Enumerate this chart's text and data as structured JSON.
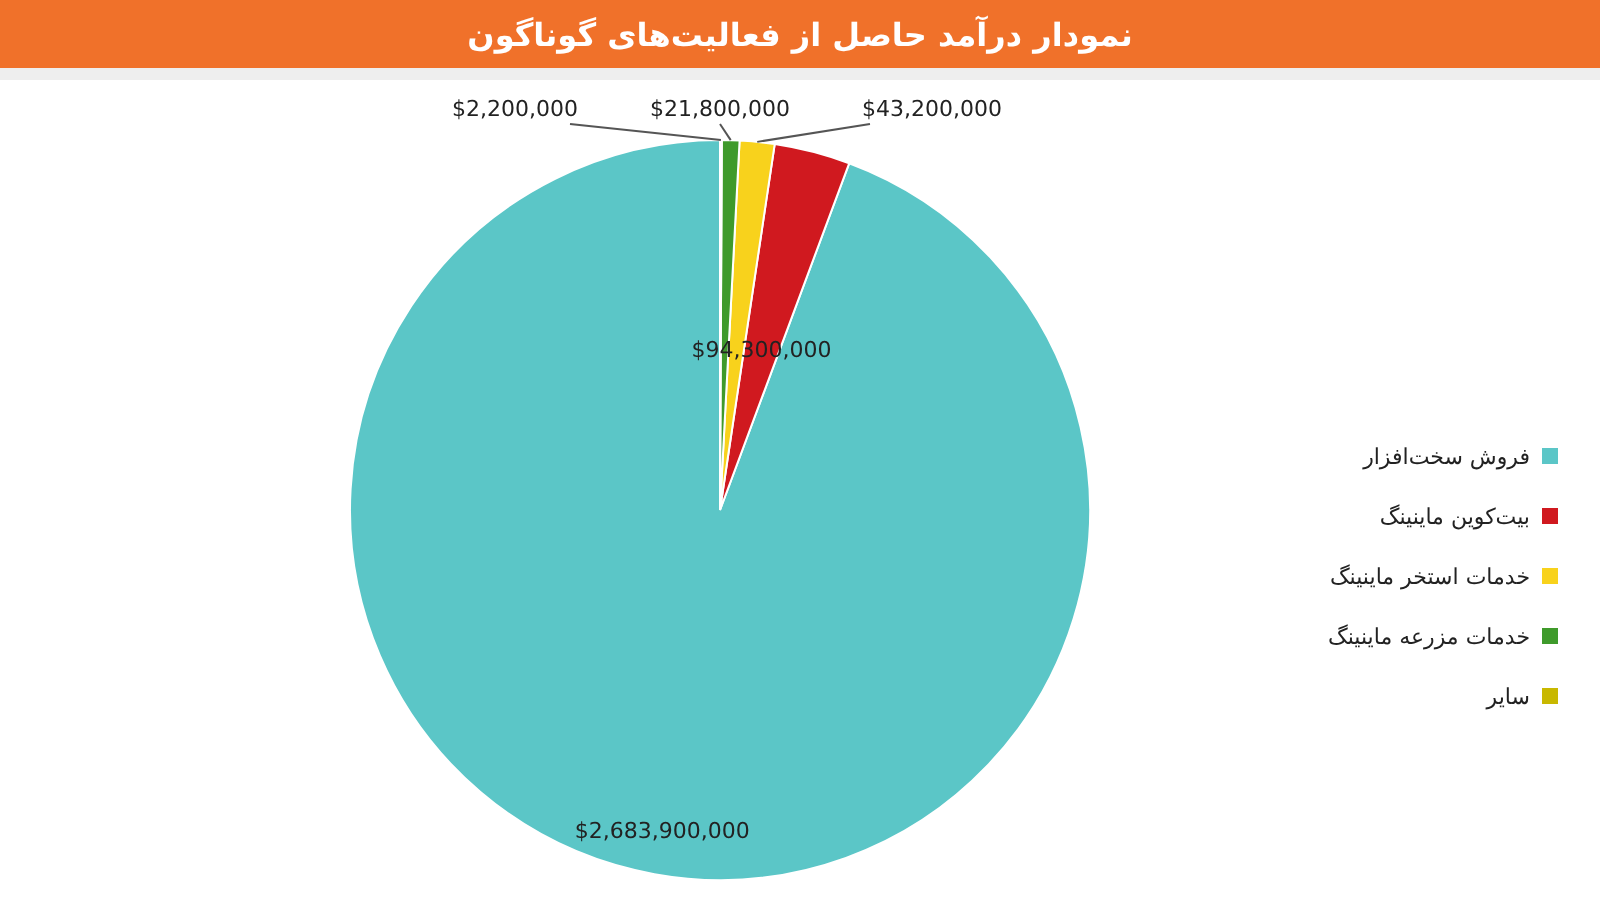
{
  "chart_data": {
    "type": "pie",
    "title": "نمودار درآمد حاصل از فعالیت‌های گوناگون",
    "categories": [
      "فروش سخت‌افزار",
      "بیت‌کوین ماینینگ",
      "خدمات استخر ماینینگ",
      "خدمات مزرعه ماینینگ",
      "سایر"
    ],
    "values": [
      2683900000,
      94300000,
      43200000,
      21800000,
      2200000
    ],
    "value_labels": [
      "$2,683,900,000",
      "$94,300,000",
      "$43,200,000",
      "$21,800,000",
      "$2,200,000"
    ],
    "colors": [
      "#5bc6c7",
      "#d0191f",
      "#f8d21c",
      "#3f9a2b",
      "#c8b800"
    ],
    "legend": "right"
  }
}
